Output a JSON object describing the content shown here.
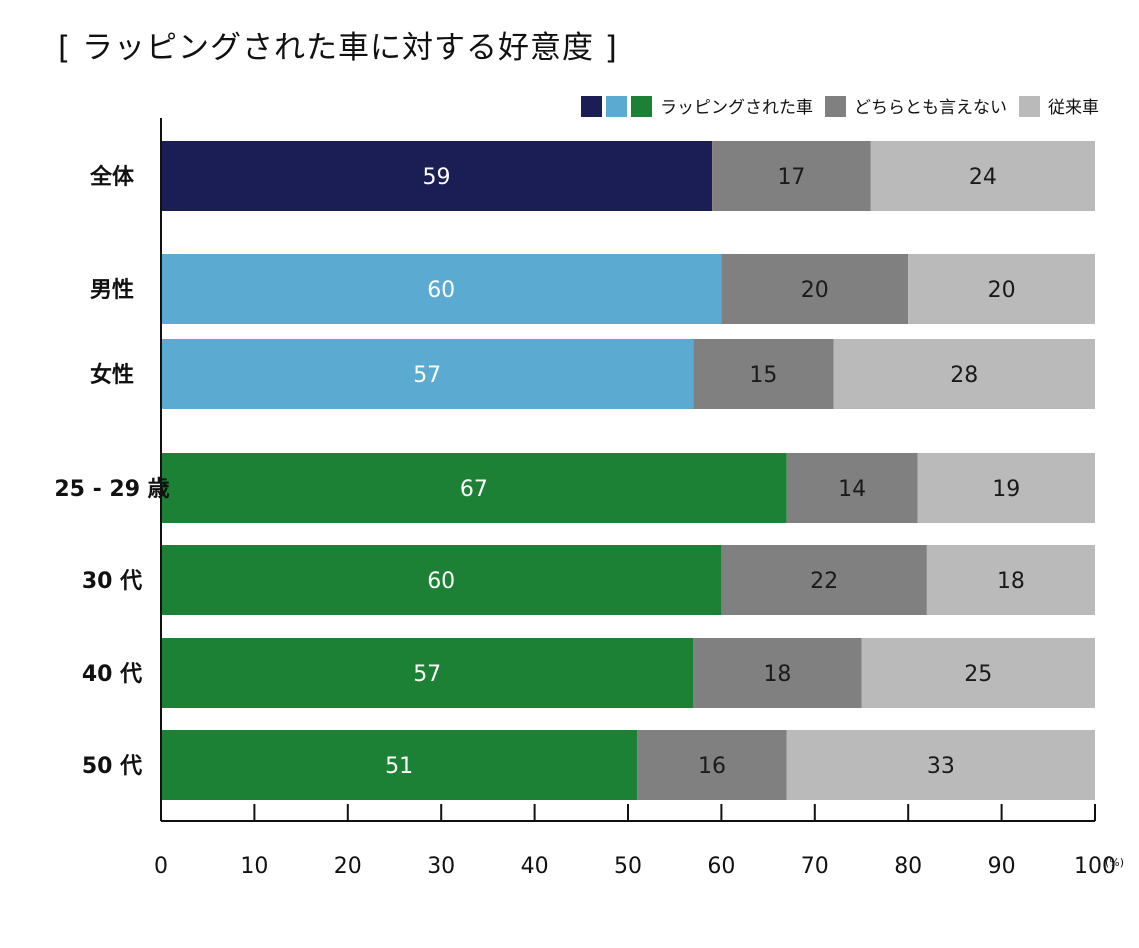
{
  "chart_data": {
    "type": "bar",
    "orientation": "horizontal",
    "stacked": true,
    "title": "[ ラッピングされた車に対する好意度 ]",
    "categories": [
      "全体",
      "男性",
      "女性",
      "25 - 29 歳",
      "30 代",
      "40 代",
      "50 代"
    ],
    "groups": [
      {
        "categories": [
          "全体"
        ],
        "color": "#1b1d55"
      },
      {
        "categories": [
          "男性",
          "女性"
        ],
        "color": "#5aaad2"
      },
      {
        "categories": [
          "25 - 29 歳",
          "30 代",
          "40 代",
          "50 代"
        ],
        "color": "#1c8035"
      }
    ],
    "series": [
      {
        "name": "ラッピングされた車",
        "values": [
          59,
          60,
          57,
          67,
          60,
          57,
          51
        ],
        "label_color": "#ffffff"
      },
      {
        "name": "どちらとも言えない",
        "values": [
          17,
          20,
          15,
          14,
          22,
          18,
          16
        ],
        "color": "#808080",
        "label_color": "#1a1a1a"
      },
      {
        "name": "従来車",
        "values": [
          24,
          20,
          28,
          19,
          18,
          25,
          33
        ],
        "color": "#bababa",
        "label_color": "#1a1a1a"
      }
    ],
    "legend": {
      "placement": "top-right",
      "entries": [
        {
          "label": "ラッピングされた車",
          "colors": [
            "#1b1d55",
            "#5aaad2",
            "#1c8035"
          ]
        },
        {
          "label": "どちらとも言えない",
          "colors": [
            "#808080"
          ]
        },
        {
          "label": "従来車",
          "colors": [
            "#bababa"
          ]
        }
      ]
    },
    "xlim": [
      0,
      100
    ],
    "xticks": [
      0,
      10,
      20,
      30,
      40,
      50,
      60,
      70,
      80,
      90,
      100
    ],
    "x_unit": "(%)",
    "grid": false
  }
}
